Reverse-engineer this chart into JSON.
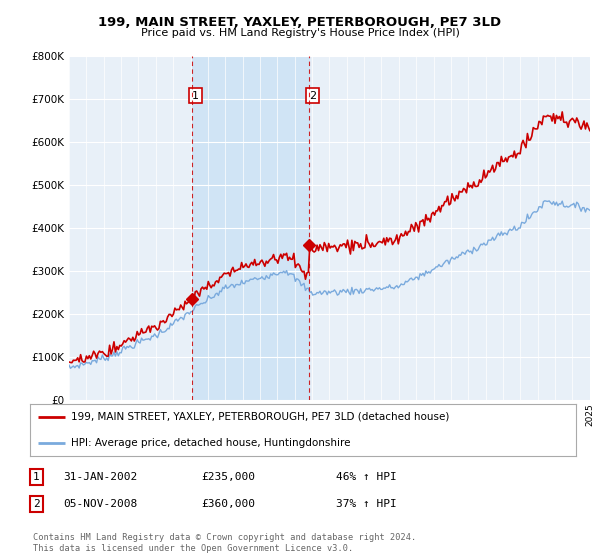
{
  "title1": "199, MAIN STREET, YAXLEY, PETERBOROUGH, PE7 3LD",
  "title2": "Price paid vs. HM Land Registry's House Price Index (HPI)",
  "background_color": "#ffffff",
  "plot_bg_color": "#e8f0f8",
  "highlight_color": "#d0e4f5",
  "legend_line1": "199, MAIN STREET, YAXLEY, PETERBOROUGH, PE7 3LD (detached house)",
  "legend_line2": "HPI: Average price, detached house, Huntingdonshire",
  "sale1_date": "31-JAN-2002",
  "sale1_price": "£235,000",
  "sale1_label": "46% ↑ HPI",
  "sale1_x": 2002.08,
  "sale1_y": 235000,
  "sale2_date": "05-NOV-2008",
  "sale2_price": "£360,000",
  "sale2_label": "37% ↑ HPI",
  "sale2_x": 2008.84,
  "sale2_y": 360000,
  "footnote": "Contains HM Land Registry data © Crown copyright and database right 2024.\nThis data is licensed under the Open Government Licence v3.0.",
  "red_color": "#cc0000",
  "blue_color": "#7aaadd",
  "vline_color": "#cc0000",
  "ylim": [
    0,
    800000
  ],
  "yticks": [
    0,
    100000,
    200000,
    300000,
    400000,
    500000,
    600000,
    700000,
    800000
  ],
  "xmin": 1995,
  "xmax": 2025
}
